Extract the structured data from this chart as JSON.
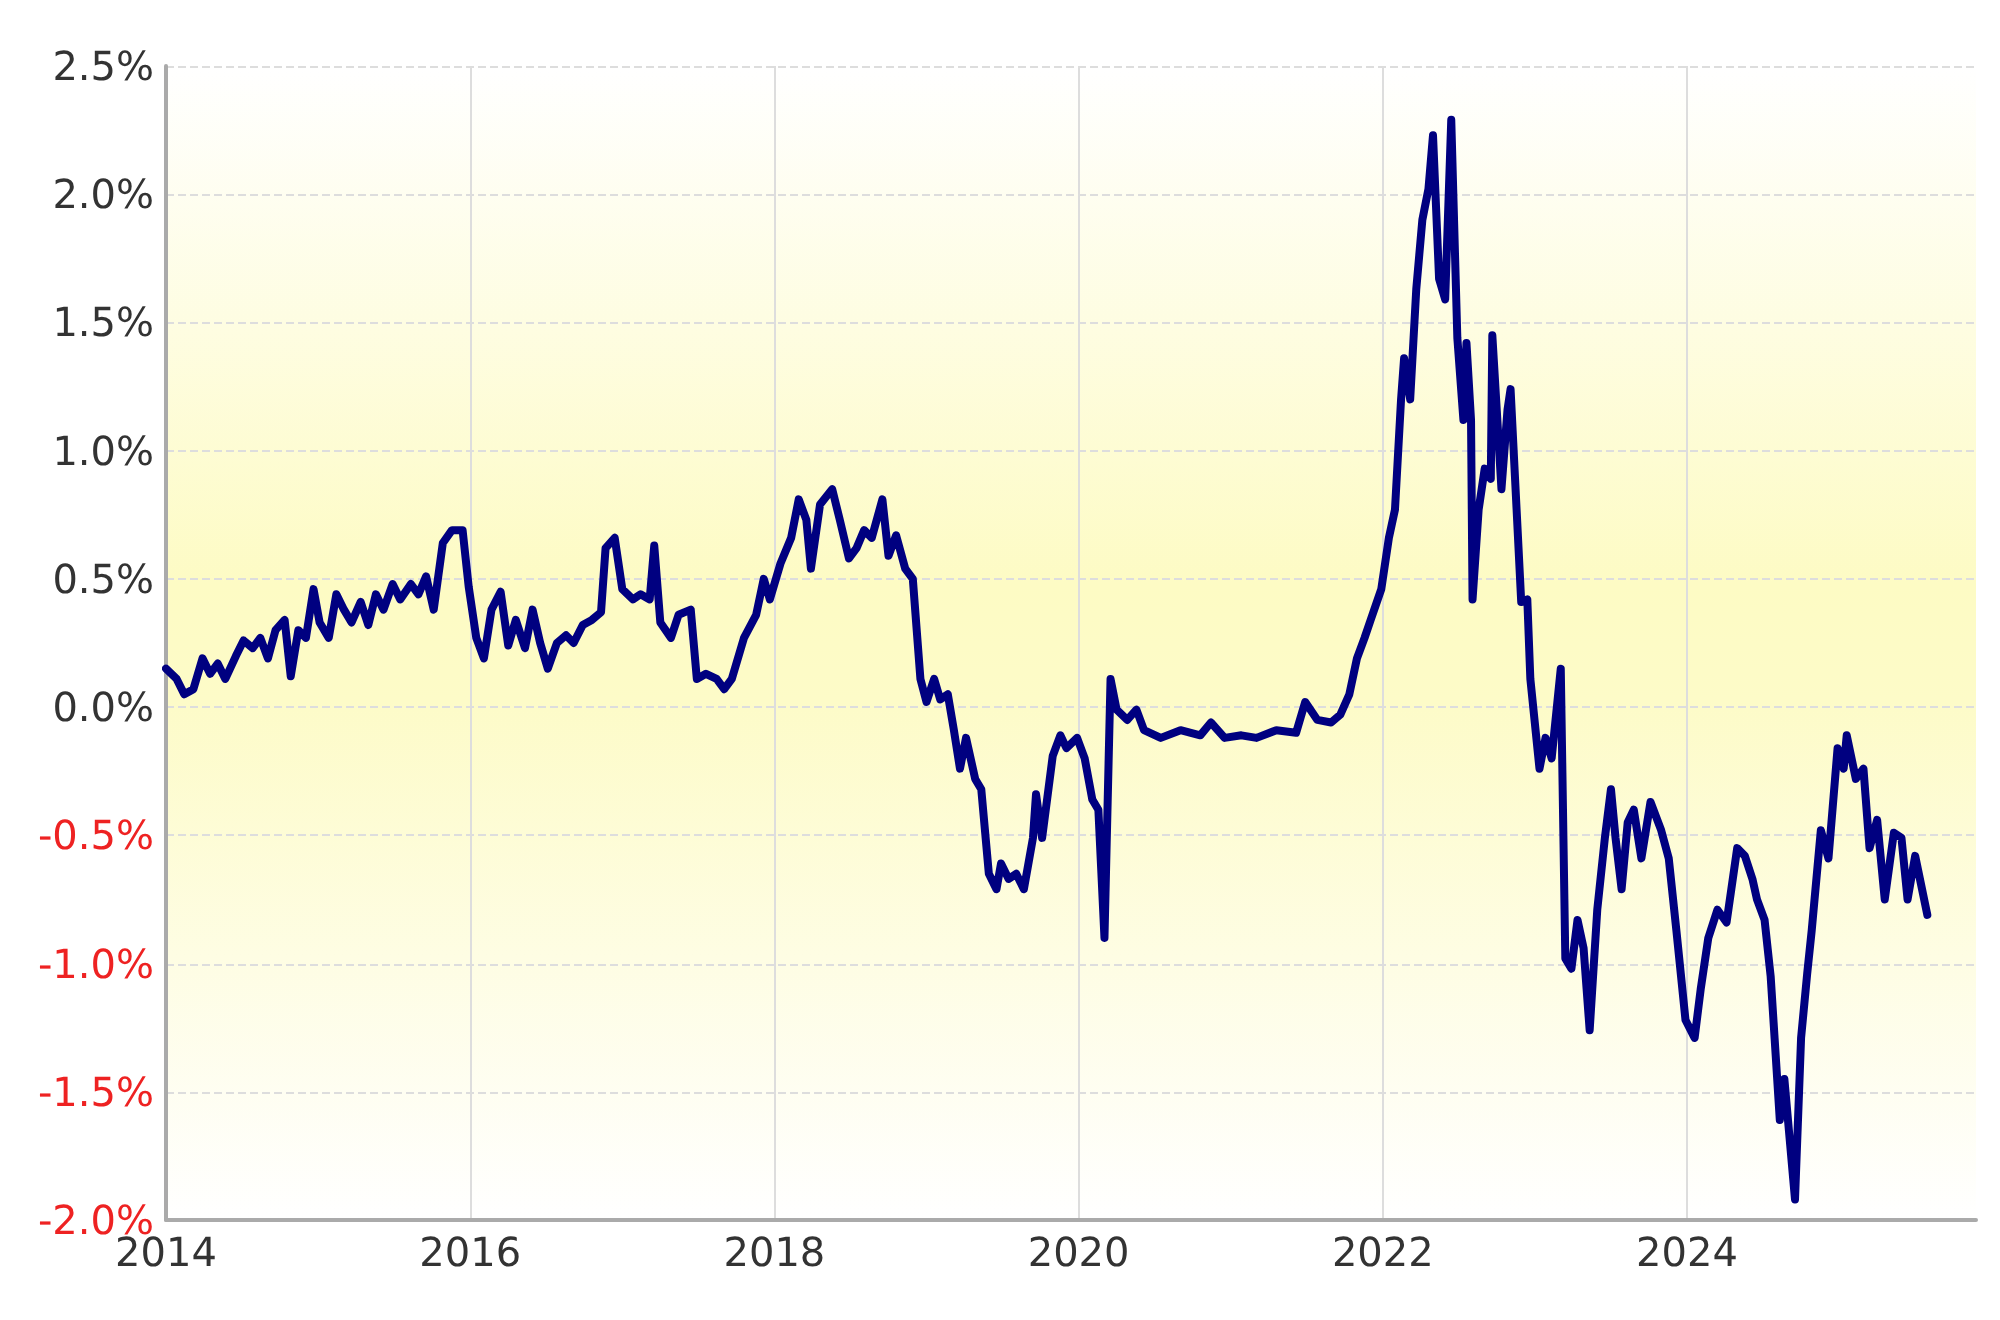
{
  "chart_data": {
    "type": "line",
    "color": "#000080",
    "marker": "none",
    "line_style": "solid",
    "grid": true,
    "xlim": [
      2014,
      2025.9
    ],
    "xticks": [
      2014,
      2016,
      2018,
      2020,
      2022,
      2024
    ],
    "ylim": [
      -2,
      2.5
    ],
    "yticks": [
      {
        "value": -2,
        "label": "-2.0%"
      },
      {
        "value": -1.5,
        "label": "-1.5%"
      },
      {
        "value": -1,
        "label": "-1.0%"
      },
      {
        "value": -0.5,
        "label": "-0.5%"
      },
      {
        "value": 0,
        "label": "0.0%"
      },
      {
        "value": 0.5,
        "label": "0.5%"
      },
      {
        "value": 1,
        "label": "1.0%"
      },
      {
        "value": 1.5,
        "label": "1.5%"
      },
      {
        "value": 2,
        "label": "2.0%"
      },
      {
        "value": 2.5,
        "label": "2.5%"
      }
    ],
    "x": [
      2014.0,
      2014.07,
      2014.12,
      2014.18,
      2014.24,
      2014.29,
      2014.34,
      2014.39,
      2014.46,
      2014.51,
      2014.57,
      2014.62,
      2014.67,
      2014.72,
      2014.78,
      2014.82,
      2014.87,
      2014.92,
      2014.97,
      2015.01,
      2015.07,
      2015.12,
      2015.17,
      2015.22,
      2015.28,
      2015.33,
      2015.38,
      2015.43,
      2015.49,
      2015.54,
      2015.61,
      2015.66,
      2015.71,
      2015.76,
      2015.82,
      2015.88,
      2015.95,
      2015.99,
      2016.04,
      2016.09,
      2016.14,
      2016.2,
      2016.25,
      2016.3,
      2016.36,
      2016.41,
      2016.46,
      2016.51,
      2016.57,
      2016.63,
      2016.68,
      2016.74,
      2016.8,
      2016.86,
      2016.89,
      2016.95,
      2017.0,
      2017.07,
      2017.12,
      2017.18,
      2017.21,
      2017.25,
      2017.32,
      2017.37,
      2017.45,
      2017.49,
      2017.55,
      2017.62,
      2017.67,
      2017.72,
      2017.8,
      2017.88,
      2017.93,
      2017.97,
      2018.04,
      2018.11,
      2018.16,
      2018.21,
      2018.24,
      2018.3,
      2018.38,
      2018.43,
      2018.49,
      2018.54,
      2018.59,
      2018.64,
      2018.71,
      2018.75,
      2018.8,
      2018.86,
      2018.91,
      2018.96,
      2019.0,
      2019.05,
      2019.09,
      2019.14,
      2019.18,
      2019.22,
      2019.26,
      2019.32,
      2019.36,
      2019.41,
      2019.46,
      2019.49,
      2019.54,
      2019.59,
      2019.64,
      2019.7,
      2019.72,
      2019.76,
      2019.83,
      2019.88,
      2019.92,
      2019.99,
      2020.04,
      2020.09,
      2020.13,
      2020.17,
      2020.21,
      2020.25,
      2020.32,
      2020.38,
      2020.43,
      2020.54,
      2020.67,
      2020.8,
      2020.87,
      2020.96,
      2021.07,
      2021.17,
      2021.3,
      2021.43,
      2021.49,
      2021.57,
      2021.66,
      2021.72,
      2021.78,
      2021.83,
      2021.88,
      2021.92,
      2021.99,
      2022.04,
      2022.08,
      2022.12,
      2022.14,
      2022.18,
      2022.22,
      2022.26,
      2022.3,
      2022.33,
      2022.37,
      2022.41,
      2022.45,
      2022.49,
      2022.53,
      2022.55,
      2022.58,
      2022.59,
      2022.63,
      2022.67,
      2022.71,
      2022.72,
      2022.78,
      2022.82,
      2022.84,
      2022.91,
      2022.95,
      2022.97,
      2023.03,
      2023.07,
      2023.11,
      2023.17,
      2023.2,
      2023.24,
      2023.28,
      2023.32,
      2023.36,
      2023.41,
      2023.46,
      2023.5,
      2023.53,
      2023.57,
      2023.61,
      2023.65,
      2023.7,
      2023.76,
      2023.83,
      2023.88,
      2023.93,
      2023.99,
      2024.05,
      2024.09,
      2024.14,
      2024.2,
      2024.26,
      2024.33,
      2024.38,
      2024.43,
      2024.46,
      2024.51,
      2024.55,
      2024.61,
      2024.64,
      2024.71,
      2024.75,
      2024.79,
      2024.82,
      2024.88,
      2024.93,
      2024.99,
      2025.03,
      2025.05,
      2025.11,
      2025.16,
      2025.2,
      2025.25,
      2025.3,
      2025.36,
      2025.41,
      2025.45,
      2025.5,
      2025.58
    ],
    "values": [
      0.15,
      0.11,
      0.05,
      0.07,
      0.19,
      0.13,
      0.17,
      0.11,
      0.2,
      0.26,
      0.23,
      0.27,
      0.19,
      0.3,
      0.34,
      0.12,
      0.3,
      0.27,
      0.46,
      0.33,
      0.27,
      0.44,
      0.38,
      0.33,
      0.41,
      0.32,
      0.44,
      0.38,
      0.48,
      0.42,
      0.48,
      0.44,
      0.51,
      0.38,
      0.64,
      0.69,
      0.69,
      0.47,
      0.27,
      0.19,
      0.38,
      0.45,
      0.24,
      0.34,
      0.23,
      0.38,
      0.25,
      0.15,
      0.25,
      0.28,
      0.25,
      0.32,
      0.34,
      0.37,
      0.62,
      0.66,
      0.46,
      0.42,
      0.44,
      0.42,
      0.63,
      0.33,
      0.27,
      0.36,
      0.38,
      0.11,
      0.13,
      0.11,
      0.07,
      0.11,
      0.27,
      0.36,
      0.5,
      0.42,
      0.56,
      0.66,
      0.81,
      0.73,
      0.54,
      0.79,
      0.85,
      0.73,
      0.58,
      0.62,
      0.69,
      0.66,
      0.81,
      0.59,
      0.67,
      0.54,
      0.5,
      0.11,
      0.02,
      0.11,
      0.03,
      0.05,
      -0.09,
      -0.24,
      -0.12,
      -0.28,
      -0.32,
      -0.65,
      -0.71,
      -0.61,
      -0.67,
      -0.65,
      -0.71,
      -0.51,
      -0.34,
      -0.51,
      -0.19,
      -0.11,
      -0.16,
      -0.12,
      -0.2,
      -0.36,
      -0.4,
      -0.9,
      0.11,
      -0.01,
      -0.05,
      -0.01,
      -0.09,
      -0.12,
      -0.09,
      -0.11,
      -0.06,
      -0.12,
      -0.11,
      -0.12,
      -0.09,
      -0.1,
      0.02,
      -0.05,
      -0.06,
      -0.03,
      0.05,
      0.19,
      0.27,
      0.34,
      0.46,
      0.66,
      0.77,
      1.2,
      1.36,
      1.2,
      1.63,
      1.9,
      2.02,
      2.23,
      1.67,
      1.59,
      2.29,
      1.44,
      1.12,
      1.42,
      1.12,
      0.42,
      0.77,
      0.93,
      0.89,
      1.45,
      0.85,
      1.16,
      1.24,
      0.41,
      0.42,
      0.11,
      -0.24,
      -0.12,
      -0.2,
      0.15,
      -0.98,
      -1.02,
      -0.83,
      -0.94,
      -1.26,
      -0.79,
      -0.51,
      -0.32,
      -0.51,
      -0.71,
      -0.45,
      -0.4,
      -0.59,
      -0.37,
      -0.48,
      -0.59,
      -0.87,
      -1.22,
      -1.29,
      -1.1,
      -0.9,
      -0.79,
      -0.84,
      -0.55,
      -0.58,
      -0.67,
      -0.75,
      -0.83,
      -1.05,
      -1.61,
      -1.45,
      -1.92,
      -1.29,
      -1.04,
      -0.87,
      -0.48,
      -0.59,
      -0.16,
      -0.24,
      -0.11,
      -0.28,
      -0.24,
      -0.55,
      -0.44,
      -0.75,
      -0.49,
      -0.51,
      -0.75,
      -0.58,
      -0.81
    ]
  }
}
